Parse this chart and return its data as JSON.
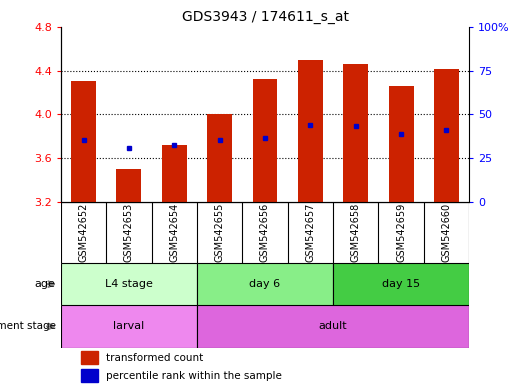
{
  "title": "GDS3943 / 174611_s_at",
  "samples": [
    "GSM542652",
    "GSM542653",
    "GSM542654",
    "GSM542655",
    "GSM542656",
    "GSM542657",
    "GSM542658",
    "GSM542659",
    "GSM542660"
  ],
  "bar_heights": [
    4.3,
    3.5,
    3.72,
    4.0,
    4.32,
    4.5,
    4.46,
    4.26,
    4.41
  ],
  "bar_bottom": 3.2,
  "percentile_values": [
    3.76,
    3.69,
    3.72,
    3.76,
    3.78,
    3.9,
    3.89,
    3.82,
    3.86
  ],
  "bar_color": "#cc2200",
  "dot_color": "#0000cc",
  "ylim": [
    3.2,
    4.8
  ],
  "yticks_left": [
    3.2,
    3.6,
    4.0,
    4.4,
    4.8
  ],
  "yticks_right": [
    0,
    25,
    50,
    75,
    100
  ],
  "right_ylim": [
    0,
    100
  ],
  "age_groups": [
    {
      "label": "L4 stage",
      "start": 0,
      "end": 3,
      "color": "#ccffcc"
    },
    {
      "label": "day 6",
      "start": 3,
      "end": 6,
      "color": "#88ee88"
    },
    {
      "label": "day 15",
      "start": 6,
      "end": 9,
      "color": "#44cc44"
    }
  ],
  "dev_groups": [
    {
      "label": "larval",
      "start": 0,
      "end": 3,
      "color": "#ee88ee"
    },
    {
      "label": "adult",
      "start": 3,
      "end": 9,
      "color": "#dd66dd"
    }
  ],
  "legend_items": [
    {
      "label": "transformed count",
      "color": "#cc2200"
    },
    {
      "label": "percentile rank within the sample",
      "color": "#0000cc"
    }
  ],
  "background_color": "#ffffff",
  "plot_bg_color": "#ffffff",
  "bar_width": 0.55,
  "n_samples": 9
}
